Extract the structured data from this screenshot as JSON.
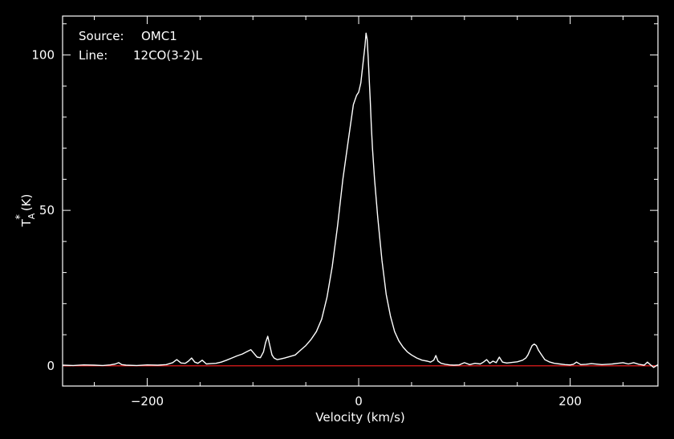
{
  "chart_data": {
    "type": "line",
    "annotations": {
      "source_label": "Source:",
      "source_value": "OMC1",
      "line_label": "Line:",
      "line_value": "12CO(3-2)L"
    },
    "xlabel": "Velocity (km/s)",
    "ylabel": "T",
    "ylabel_sub": "A",
    "ylabel_sup": "*",
    "ylabel_unit": "(K)",
    "xlim": [
      -280,
      283
    ],
    "ylim": [
      -6.5,
      112.5
    ],
    "x_major_ticks": [
      -200,
      0,
      200
    ],
    "x_tick_labels": [
      "−200",
      "0",
      "200"
    ],
    "y_major_ticks": [
      0,
      50,
      100
    ],
    "y_tick_labels": [
      "0",
      "50",
      "100"
    ],
    "x_minor_step": 50,
    "y_minor_step": 10,
    "grid": false,
    "colors": {
      "background": "#000000",
      "foreground": "#ffffff",
      "spectrum": "#ffffff",
      "baseline": "#ff2020"
    },
    "baseline": {
      "name": "baseline",
      "y": 0
    },
    "series": [
      {
        "x": [
          -280,
          -270,
          -260,
          -250,
          -242,
          -235,
          -230,
          -227,
          -224,
          -220,
          -210,
          -200,
          -190,
          -182,
          -176,
          -172,
          -168,
          -164,
          -161,
          -158,
          -155,
          -152,
          -148,
          -144,
          -140,
          -135,
          -130,
          -125,
          -120,
          -115,
          -110,
          -106,
          -102,
          -99,
          -96,
          -93,
          -90,
          -88,
          -86,
          -84,
          -82,
          -80,
          -77,
          -74,
          -70,
          -65,
          -60,
          -55,
          -50,
          -45,
          -40,
          -35,
          -30,
          -25,
          -20,
          -15,
          -10,
          -5,
          -2,
          0,
          2,
          4,
          6,
          7,
          8,
          9,
          10,
          11,
          12,
          13,
          15,
          18,
          22,
          26,
          30,
          34,
          38,
          42,
          46,
          50,
          55,
          60,
          65,
          68,
          71,
          73,
          75,
          78,
          82,
          86,
          90,
          95,
          100,
          105,
          110,
          115,
          118,
          121,
          124,
          127,
          130,
          133,
          136,
          140,
          145,
          150,
          155,
          158,
          160,
          162,
          164,
          166,
          168,
          170,
          173,
          176,
          180,
          185,
          190,
          195,
          200,
          203,
          206,
          210,
          215,
          220,
          230,
          240,
          245,
          250,
          255,
          260,
          265,
          270,
          273,
          276,
          279,
          283
        ],
        "y": [
          0.2,
          0.1,
          0.3,
          0.2,
          0.1,
          0.3,
          0.6,
          1.0,
          0.4,
          0.2,
          0.1,
          0.3,
          0.2,
          0.4,
          1.0,
          2.0,
          0.9,
          0.8,
          1.5,
          2.5,
          1.2,
          0.8,
          1.8,
          0.6,
          0.7,
          0.8,
          1.2,
          1.8,
          2.5,
          3.2,
          3.8,
          4.5,
          5.2,
          4.0,
          2.8,
          2.6,
          4.5,
          7.5,
          9.5,
          6.5,
          3.5,
          2.5,
          2.0,
          2.2,
          2.5,
          3.0,
          3.5,
          5.0,
          6.5,
          8.5,
          11.0,
          15.0,
          22.0,
          32.0,
          45.0,
          60.0,
          72.0,
          84.0,
          87.0,
          88.0,
          91.0,
          97.0,
          103.0,
          107.0,
          105.0,
          99.0,
          92.0,
          85.0,
          77.0,
          70.0,
          60.0,
          48.0,
          34.0,
          23.0,
          16.0,
          11.0,
          8.0,
          6.0,
          4.5,
          3.5,
          2.5,
          1.8,
          1.5,
          1.2,
          1.8,
          3.3,
          1.5,
          0.8,
          0.5,
          0.3,
          0.2,
          0.3,
          1.0,
          0.4,
          0.8,
          0.6,
          1.2,
          2.0,
          0.8,
          1.5,
          1.0,
          2.8,
          1.2,
          0.9,
          1.1,
          1.3,
          1.8,
          2.5,
          3.5,
          5.0,
          6.5,
          7.0,
          6.5,
          5.0,
          3.5,
          2.0,
          1.3,
          0.8,
          0.6,
          0.4,
          0.3,
          0.5,
          1.2,
          0.4,
          0.5,
          0.7,
          0.4,
          0.6,
          0.8,
          1.0,
          0.6,
          1.0,
          0.5,
          0.2,
          1.2,
          0.3,
          -0.5,
          0.4
        ]
      }
    ]
  }
}
